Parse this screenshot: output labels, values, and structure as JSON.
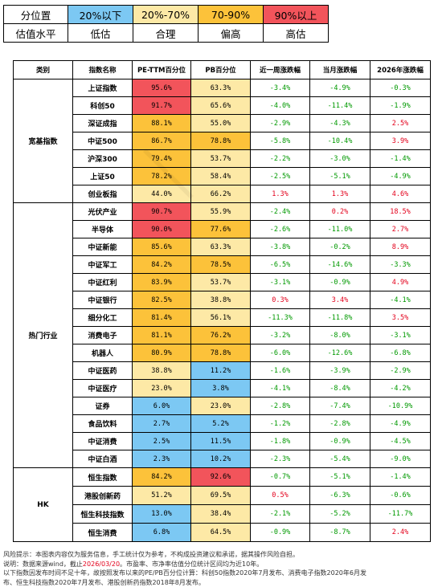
{
  "legend": {
    "row1": [
      "分位置",
      "20%以下",
      "20%-70%",
      "70-90%",
      "90%以上"
    ],
    "row2": [
      "估值水平",
      "低估",
      "合理",
      "偏高",
      "高估"
    ],
    "colors": {
      "low": "#7cc8f3",
      "mid": "#fde9a6",
      "high": "#fcc23a",
      "top": "#f2545b"
    }
  },
  "headers": [
    "类别",
    "指数名称",
    "PE-TTM百分位",
    "PB百分位",
    "近一周涨跌幅",
    "当月涨跌幅",
    "2026年涨跌幅"
  ],
  "groups": [
    {
      "category": "宽基指数",
      "rows": [
        {
          "name": "上证指数",
          "pe": "95.6%",
          "pb": "63.3%",
          "week": "-3.4%",
          "month": "-4.9%",
          "ytd": "-0.3%"
        },
        {
          "name": "科创50",
          "pe": "91.7%",
          "pb": "65.6%",
          "week": "-4.0%",
          "month": "-11.4%",
          "ytd": "-1.9%"
        },
        {
          "name": "深证成指",
          "pe": "88.1%",
          "pb": "55.0%",
          "week": "-2.9%",
          "month": "-4.3%",
          "ytd": "2.5%"
        },
        {
          "name": "中证500",
          "pe": "86.7%",
          "pb": "78.8%",
          "week": "-5.8%",
          "month": "-10.4%",
          "ytd": "3.9%"
        },
        {
          "name": "沪深300",
          "pe": "79.4%",
          "pb": "53.7%",
          "week": "-2.2%",
          "month": "-3.0%",
          "ytd": "-1.4%"
        },
        {
          "name": "上证50",
          "pe": "78.2%",
          "pb": "58.4%",
          "week": "-2.5%",
          "month": "-5.1%",
          "ytd": "-4.9%"
        },
        {
          "name": "创业板指",
          "pe": "44.0%",
          "pb": "66.2%",
          "week": "1.3%",
          "month": "1.3%",
          "ytd": "4.6%"
        }
      ]
    },
    {
      "category": "热门行业",
      "rows": [
        {
          "name": "光伏产业",
          "pe": "90.7%",
          "pb": "55.9%",
          "week": "-2.4%",
          "month": "0.2%",
          "ytd": "18.5%"
        },
        {
          "name": "半导体",
          "pe": "90.0%",
          "pb": "77.6%",
          "week": "-2.6%",
          "month": "-11.0%",
          "ytd": "2.7%"
        },
        {
          "name": "中证新能",
          "pe": "85.6%",
          "pb": "63.3%",
          "week": "-3.8%",
          "month": "-0.2%",
          "ytd": "8.9%"
        },
        {
          "name": "中证军工",
          "pe": "84.2%",
          "pb": "78.5%",
          "week": "-6.5%",
          "month": "-14.6%",
          "ytd": "-3.3%"
        },
        {
          "name": "中证红利",
          "pe": "83.9%",
          "pb": "53.7%",
          "week": "-3.1%",
          "month": "-0.9%",
          "ytd": "4.9%"
        },
        {
          "name": "中证银行",
          "pe": "82.5%",
          "pb": "38.8%",
          "week": "0.3%",
          "month": "3.4%",
          "ytd": "-4.1%"
        },
        {
          "name": "细分化工",
          "pe": "81.4%",
          "pb": "56.1%",
          "week": "-11.3%",
          "month": "-11.8%",
          "ytd": "3.5%"
        },
        {
          "name": "消费电子",
          "pe": "81.1%",
          "pb": "76.2%",
          "week": "-3.2%",
          "month": "-8.0%",
          "ytd": "-3.1%"
        },
        {
          "name": "机器人",
          "pe": "80.9%",
          "pb": "78.8%",
          "week": "-6.0%",
          "month": "-12.6%",
          "ytd": "-6.8%"
        },
        {
          "name": "中证医药",
          "pe": "38.8%",
          "pb": "11.2%",
          "week": "-1.6%",
          "month": "-3.9%",
          "ytd": "-2.9%"
        },
        {
          "name": "中证医疗",
          "pe": "23.0%",
          "pb": "3.8%",
          "week": "-4.1%",
          "month": "-8.4%",
          "ytd": "-4.2%"
        },
        {
          "name": "证券",
          "pe": "6.0%",
          "pb": "23.0%",
          "week": "-2.8%",
          "month": "-7.4%",
          "ytd": "-10.9%"
        },
        {
          "name": "食品饮料",
          "pe": "2.7%",
          "pb": "5.2%",
          "week": "-1.2%",
          "month": "-2.8%",
          "ytd": "-4.9%"
        },
        {
          "name": "中证消费",
          "pe": "2.5%",
          "pb": "11.5%",
          "week": "-1.8%",
          "month": "-0.9%",
          "ytd": "-4.5%"
        },
        {
          "name": "中证白酒",
          "pe": "2.3%",
          "pb": "10.2%",
          "week": "-2.3%",
          "month": "-5.4%",
          "ytd": "-9.0%"
        }
      ]
    },
    {
      "category": "HK",
      "rows": [
        {
          "name": "恒生指数",
          "pe": "84.2%",
          "pb": "92.6%",
          "week": "-0.7%",
          "month": "-5.1%",
          "ytd": "-1.4%"
        },
        {
          "name": "港股创新药",
          "pe": "51.2%",
          "pb": "69.5%",
          "week": "0.5%",
          "month": "-6.3%",
          "ytd": "-0.6%"
        },
        {
          "name": "恒生科技指数",
          "pe": "13.0%",
          "pb": "38.4%",
          "week": "-2.1%",
          "month": "-5.2%",
          "ytd": "-11.7%"
        },
        {
          "name": "恒生消费",
          "pe": "6.8%",
          "pb": "64.5%",
          "week": "-0.9%",
          "month": "-8.7%",
          "ytd": "2.4%"
        }
      ]
    }
  ],
  "notes": {
    "line1": "风险提示：本图表内容仅为服务信息，手工统计仅为参考，不构成投资建议和承诺，据其操作风险自担。",
    "line2_pre": "说明：数据来源wind，截止",
    "line2_date": "2026/03/20",
    "line2_post": "。市盈率、市净率估值分位统计区间均为近10年。",
    "line3": "以下指数因发布时间不足十年，故按照发布以来的PE/PB百分位计算：科创50指数2020年7月发布、消费电子指数2020年6月发",
    "line4": "布、恒生科技指数2020年7月发布、港股创新药指数2018年8月发布。"
  }
}
